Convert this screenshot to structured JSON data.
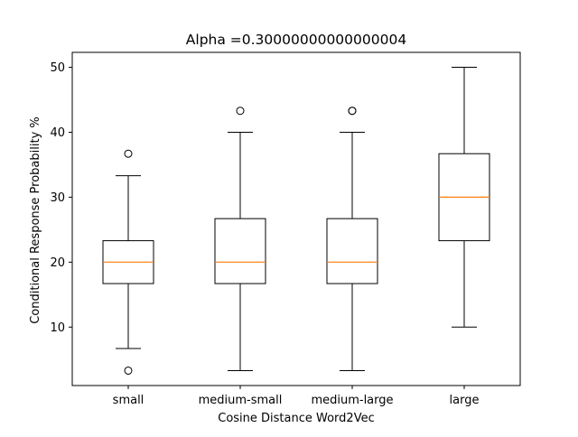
{
  "chart_data": {
    "type": "box",
    "title": "Alpha =0.30000000000000004",
    "xlabel": "Cosine Distance Word2Vec",
    "ylabel": "Conditional Response Probability %",
    "ylim": [
      1.0,
      52.3
    ],
    "yticks": [
      10,
      20,
      30,
      40,
      50
    ],
    "categories": [
      "small",
      "medium-small",
      "medium-large",
      "large"
    ],
    "boxes": [
      {
        "whisker_low": 6.7,
        "q1": 16.7,
        "median": 20.0,
        "q3": 23.3,
        "whisker_high": 33.3,
        "outliers": [
          3.3,
          36.7
        ]
      },
      {
        "whisker_low": 3.3,
        "q1": 16.7,
        "median": 20.0,
        "q3": 26.7,
        "whisker_high": 40.0,
        "outliers": [
          43.3
        ]
      },
      {
        "whisker_low": 3.3,
        "q1": 16.7,
        "median": 20.0,
        "q3": 26.7,
        "whisker_high": 40.0,
        "outliers": [
          43.3,
          43.3
        ]
      },
      {
        "whisker_low": 10.0,
        "q1": 23.3,
        "median": 30.0,
        "q3": 36.7,
        "whisker_high": 50.0,
        "outliers": []
      }
    ],
    "grid": false,
    "colors": {
      "box": "#000000",
      "median": "#ff7f0e",
      "outlier": "#000000"
    }
  }
}
